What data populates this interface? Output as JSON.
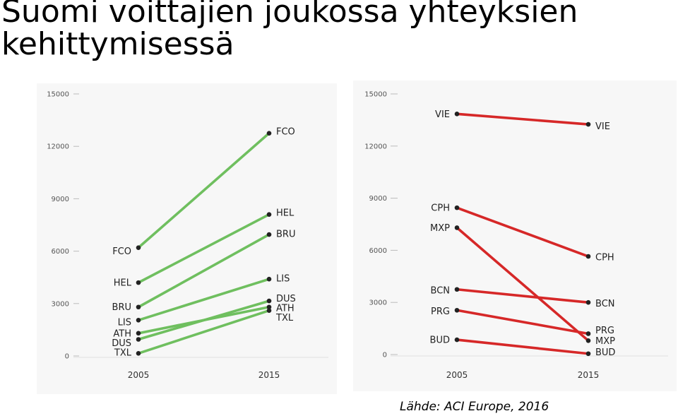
{
  "title": "Suomi voittajien joukossa yhteyksien\nkehittymisessä",
  "source": "Lähde: ACI Europe, 2016",
  "colors": {
    "left_line": "#6fbf5f",
    "right_line": "#d62828",
    "dot": "#222222"
  },
  "chart_data": [
    {
      "type": "line",
      "title": "",
      "xlabel": "",
      "ylabel": "",
      "x": [
        "2005",
        "2015"
      ],
      "ylim": [
        0,
        15000
      ],
      "yticks": [
        "0",
        "3000",
        "6000",
        "9000",
        "12000",
        "15000"
      ],
      "series": [
        {
          "name": "FCO",
          "values": [
            6200,
            12750
          ]
        },
        {
          "name": "HEL",
          "values": [
            4200,
            8100
          ]
        },
        {
          "name": "BRU",
          "values": [
            2800,
            6950
          ]
        },
        {
          "name": "LIS",
          "values": [
            2050,
            4400
          ]
        },
        {
          "name": "ATH",
          "values": [
            1300,
            2800
          ]
        },
        {
          "name": "DUS",
          "values": [
            950,
            3150
          ]
        },
        {
          "name": "TXL",
          "values": [
            150,
            2600
          ]
        }
      ],
      "labels_2005": [
        {
          "text": "FCO",
          "y": 6000
        },
        {
          "text": "HEL",
          "y": 4200
        },
        {
          "text": "BRU",
          "y": 2800
        },
        {
          "text": "LIS",
          "y": 1950
        },
        {
          "text": "ATH",
          "y": 1300
        },
        {
          "text": "DUS",
          "y": 750
        },
        {
          "text": "TXL",
          "y": 200
        }
      ],
      "labels_2015": [
        {
          "text": "FCO",
          "y": 12850
        },
        {
          "text": "HEL",
          "y": 8200
        },
        {
          "text": "BRU",
          "y": 7000
        },
        {
          "text": "LIS",
          "y": 4450
        },
        {
          "text": "DUS",
          "y": 3300
        },
        {
          "text": "ATH",
          "y": 2750
        },
        {
          "text": "TXL",
          "y": 2200
        }
      ]
    },
    {
      "type": "line",
      "title": "",
      "xlabel": "",
      "ylabel": "",
      "x": [
        "2005",
        "2015"
      ],
      "ylim": [
        0,
        15000
      ],
      "yticks": [
        "0",
        "3000",
        "6000",
        "9000",
        "12000",
        "15000"
      ],
      "series": [
        {
          "name": "VIE",
          "values": [
            13850,
            13250
          ]
        },
        {
          "name": "CPH",
          "values": [
            8450,
            5650
          ]
        },
        {
          "name": "MXP",
          "values": [
            7300,
            800
          ]
        },
        {
          "name": "BCN",
          "values": [
            3750,
            3000
          ]
        },
        {
          "name": "PRG",
          "values": [
            2550,
            1200
          ]
        },
        {
          "name": "BUD",
          "values": [
            850,
            50
          ]
        }
      ],
      "labels_2005": [
        {
          "text": "VIE",
          "y": 13850
        },
        {
          "text": "CPH",
          "y": 8450
        },
        {
          "text": "MXP",
          "y": 7300
        },
        {
          "text": "BCN",
          "y": 3700
        },
        {
          "text": "PRG",
          "y": 2500
        },
        {
          "text": "BUD",
          "y": 850
        }
      ],
      "labels_2015": [
        {
          "text": "VIE",
          "y": 13150
        },
        {
          "text": "CPH",
          "y": 5600
        },
        {
          "text": "BCN",
          "y": 2950
        },
        {
          "text": "PRG",
          "y": 1400
        },
        {
          "text": "MXP",
          "y": 800
        },
        {
          "text": "BUD",
          "y": 150
        }
      ]
    }
  ]
}
